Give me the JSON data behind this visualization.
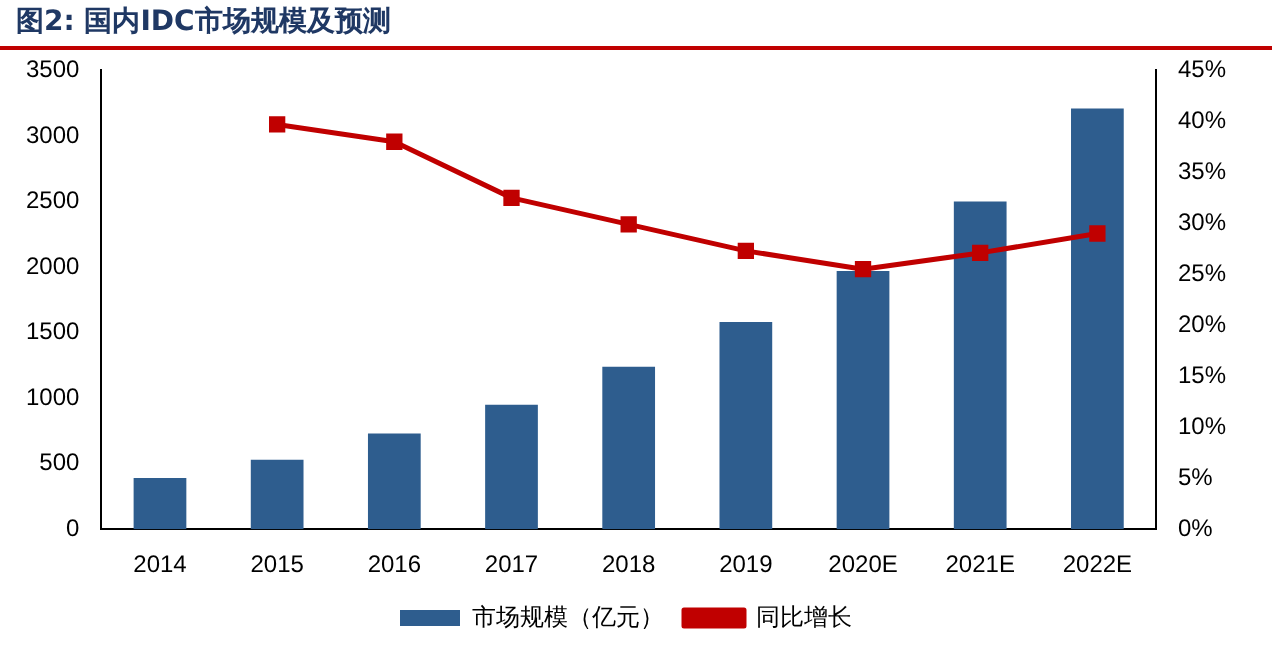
{
  "chart_data": {
    "type": "bar",
    "title": "图2:  国内IDC市场规模及预测",
    "categories": [
      "2014",
      "2015",
      "2016",
      "2017",
      "2018",
      "2019",
      "2020E",
      "2021E",
      "2022E"
    ],
    "series": [
      {
        "name": "市场规模（亿元）",
        "color": "#2e5d8e",
        "values": [
          390,
          530,
          730,
          950,
          1240,
          1580,
          1970,
          2500,
          3210
        ]
      },
      {
        "name": "同比增长",
        "type": "line",
        "axis": "y2",
        "color": "#c00000",
        "marker": "square",
        "values": [
          null,
          39.7,
          38.0,
          32.5,
          29.9,
          27.3,
          25.5,
          27.1,
          29.0
        ]
      }
    ],
    "ylim": [
      0,
      3500
    ],
    "yticks": [
      0,
      500,
      1000,
      1500,
      2000,
      2500,
      3000,
      3500
    ],
    "y2lim": [
      0,
      45
    ],
    "y2ticks": [
      {
        "value": 0,
        "label": "0%"
      },
      {
        "value": 5,
        "label": "5%"
      },
      {
        "value": 10,
        "label": "10%"
      },
      {
        "value": 15,
        "label": "15%"
      },
      {
        "value": 20,
        "label": "20%"
      },
      {
        "value": 25,
        "label": "25%"
      },
      {
        "value": 30,
        "label": "30%"
      },
      {
        "value": 35,
        "label": "35%"
      },
      {
        "value": 40,
        "label": "40%"
      },
      {
        "value": 45,
        "label": "45%"
      }
    ],
    "grid": false,
    "legend": "bottom"
  }
}
